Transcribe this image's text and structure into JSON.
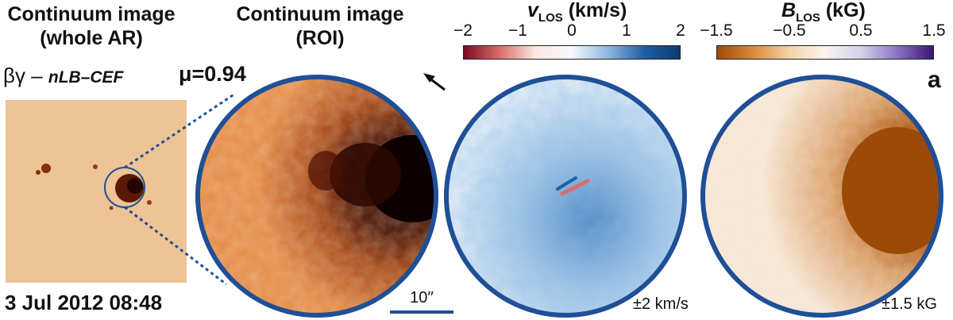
{
  "headers": {
    "whole_ar_line1": "Continuum image",
    "whole_ar_line2": "(whole AR)",
    "roi_line1": "Continuum image",
    "roi_line2": "(ROI)"
  },
  "vlos": {
    "label_var": "v",
    "label_sub": "LOS",
    "label_unit": "(km/s)",
    "ticks": [
      "−2",
      "−1",
      "0",
      "1",
      "2"
    ],
    "range_note": "±2 km/s",
    "colors": [
      "#7a0a25",
      "#d86f6a",
      "#fbe9e1",
      "#f4f7fb",
      "#8fb8df",
      "#1f5fa3",
      "#0c3a73"
    ]
  },
  "blos": {
    "label_var": "B",
    "label_sub": "LOS",
    "label_unit": "(kG)",
    "ticks": [
      "−1.5",
      "−0.5",
      "0.5",
      "1.5"
    ],
    "range_note": "±1.5 kG",
    "colors": [
      "#9c4a07",
      "#d88a3c",
      "#f4d2a8",
      "#faf4ef",
      "#d2d2ea",
      "#8a74c2",
      "#3d1470"
    ]
  },
  "classification": {
    "prefix": "βγ – ",
    "type": "nLB–CEF",
    "mu_label": "μ=0.94"
  },
  "panel_letter": "a",
  "date": "3 Jul 2012 08:48",
  "scale_bar_label": "10′′",
  "arrow": "north-direction-arrow",
  "accent_ring_color": "#1f4f96"
}
